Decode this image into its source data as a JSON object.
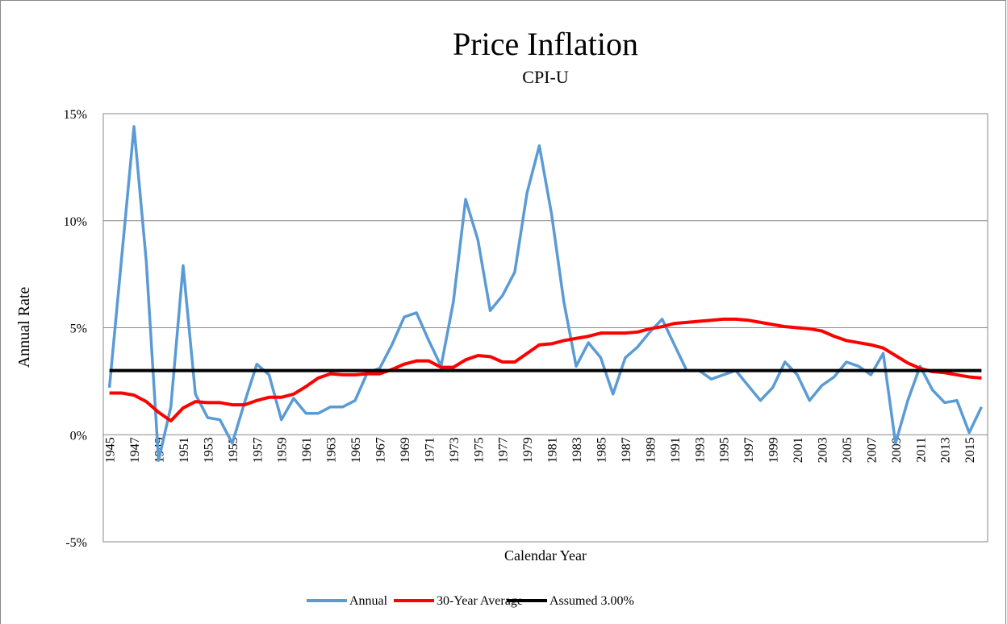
{
  "chart_data": {
    "type": "line",
    "title": "Price Inflation",
    "subtitle": "CPI-U",
    "x_label": "Calendar Year",
    "y_label": "Annual Rate",
    "x": [
      1945,
      1946,
      1947,
      1948,
      1949,
      1950,
      1951,
      1952,
      1953,
      1954,
      1955,
      1956,
      1957,
      1958,
      1959,
      1960,
      1961,
      1962,
      1963,
      1964,
      1965,
      1966,
      1967,
      1968,
      1969,
      1970,
      1971,
      1972,
      1973,
      1974,
      1975,
      1976,
      1977,
      1978,
      1979,
      1980,
      1981,
      1982,
      1983,
      1984,
      1985,
      1986,
      1987,
      1988,
      1989,
      1990,
      1991,
      1992,
      1993,
      1994,
      1995,
      1996,
      1997,
      1998,
      1999,
      2000,
      2001,
      2002,
      2003,
      2004,
      2005,
      2006,
      2007,
      2008,
      2009,
      2010,
      2011,
      2012,
      2013,
      2014,
      2015,
      2016
    ],
    "xlim": [
      1944.5,
      2016.5
    ],
    "xticks": [
      1945,
      1947,
      1949,
      1951,
      1953,
      1955,
      1957,
      1959,
      1961,
      1963,
      1965,
      1967,
      1969,
      1971,
      1973,
      1975,
      1977,
      1979,
      1981,
      1983,
      1985,
      1987,
      1989,
      1991,
      1993,
      1995,
      1997,
      1999,
      2001,
      2003,
      2005,
      2007,
      2009,
      2011,
      2013,
      2015
    ],
    "ylim": [
      -5,
      15
    ],
    "yticks": [
      {
        "value": -5,
        "label": "-5%"
      },
      {
        "value": 0,
        "label": "0%"
      },
      {
        "value": 5,
        "label": "5%"
      },
      {
        "value": 10,
        "label": "10%"
      },
      {
        "value": 15,
        "label": "15%"
      }
    ],
    "grid": true,
    "legend": "bottom",
    "series": [
      {
        "name": "Annual",
        "color": "#5b9bd5",
        "values": [
          2.2,
          8.3,
          14.4,
          8.1,
          -1.2,
          1.3,
          7.9,
          1.9,
          0.8,
          0.7,
          -0.4,
          1.5,
          3.3,
          2.8,
          0.7,
          1.7,
          1.0,
          1.0,
          1.3,
          1.3,
          1.6,
          2.9,
          3.1,
          4.2,
          5.5,
          5.7,
          4.4,
          3.2,
          6.2,
          11.0,
          9.1,
          5.8,
          6.5,
          7.6,
          11.3,
          13.5,
          10.3,
          6.2,
          3.2,
          4.3,
          3.6,
          1.9,
          3.6,
          4.1,
          4.8,
          5.4,
          4.2,
          3.0,
          3.0,
          2.6,
          2.8,
          3.0,
          2.3,
          1.6,
          2.2,
          3.4,
          2.8,
          1.6,
          2.3,
          2.7,
          3.4,
          3.2,
          2.8,
          3.8,
          -0.4,
          1.6,
          3.2,
          2.1,
          1.5,
          1.6,
          0.1,
          1.3
        ]
      },
      {
        "name": "30-Year Average",
        "color": "#ff0000",
        "values": [
          1.95,
          1.95,
          1.85,
          1.55,
          1.05,
          0.65,
          1.25,
          1.55,
          1.5,
          1.5,
          1.4,
          1.4,
          1.6,
          1.75,
          1.75,
          1.9,
          2.25,
          2.65,
          2.85,
          2.8,
          2.8,
          2.85,
          2.85,
          3.05,
          3.3,
          3.45,
          3.45,
          3.15,
          3.15,
          3.5,
          3.7,
          3.65,
          3.4,
          3.4,
          3.8,
          4.2,
          4.25,
          4.4,
          4.5,
          4.6,
          4.75,
          4.75,
          4.75,
          4.8,
          4.95,
          5.05,
          5.2,
          5.25,
          5.3,
          5.35,
          5.4,
          5.4,
          5.35,
          5.25,
          5.15,
          5.05,
          5.0,
          4.95,
          4.85,
          4.6,
          4.4,
          4.3,
          4.2,
          4.05,
          3.7,
          3.35,
          3.1,
          2.95,
          2.9,
          2.8,
          2.7,
          2.65
        ]
      },
      {
        "name": "Assumed 3.00%",
        "color": "#000000",
        "values": [
          3,
          3,
          3,
          3,
          3,
          3,
          3,
          3,
          3,
          3,
          3,
          3,
          3,
          3,
          3,
          3,
          3,
          3,
          3,
          3,
          3,
          3,
          3,
          3,
          3,
          3,
          3,
          3,
          3,
          3,
          3,
          3,
          3,
          3,
          3,
          3,
          3,
          3,
          3,
          3,
          3,
          3,
          3,
          3,
          3,
          3,
          3,
          3,
          3,
          3,
          3,
          3,
          3,
          3,
          3,
          3,
          3,
          3,
          3,
          3,
          3,
          3,
          3,
          3,
          3,
          3,
          3,
          3,
          3,
          3,
          3,
          3
        ]
      }
    ]
  }
}
